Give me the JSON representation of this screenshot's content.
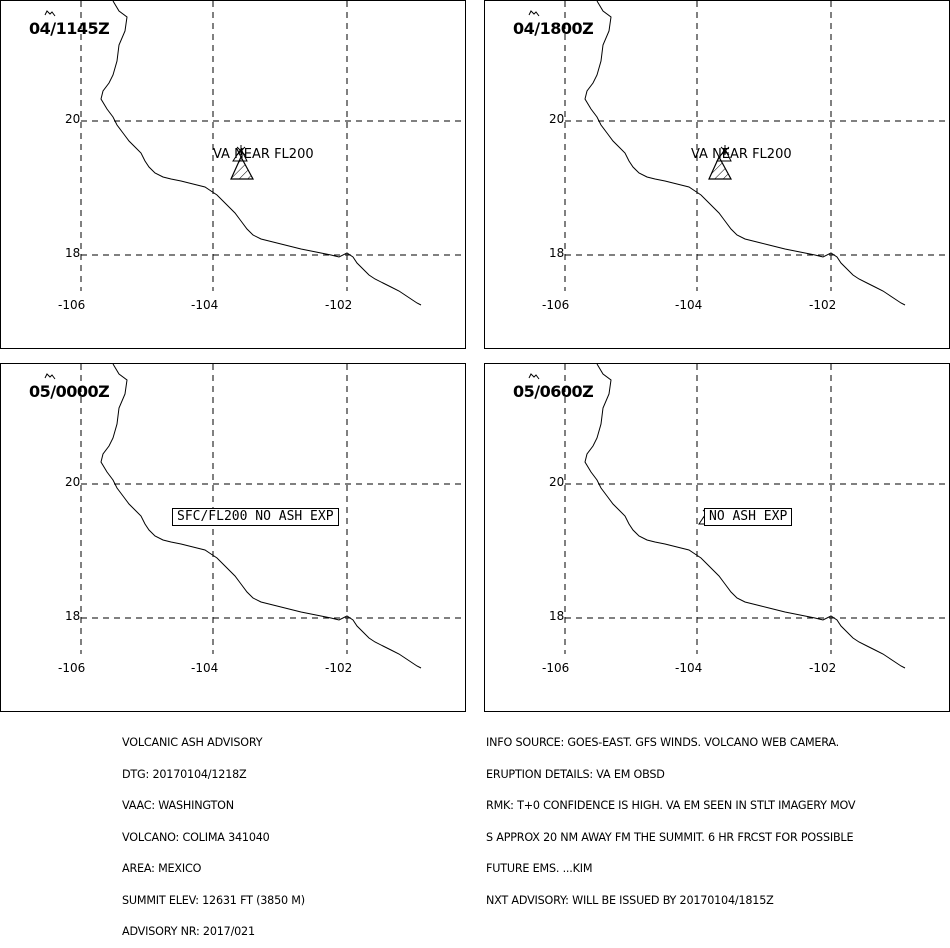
{
  "panels": [
    {
      "time": "04/1145Z",
      "lat_labels": [
        "20",
        "18"
      ],
      "lon_labels": [
        "-106",
        "-104",
        "-102"
      ],
      "annotation": {
        "kind": "cloud",
        "text": "VA NEAR FL200"
      }
    },
    {
      "time": "04/1800Z",
      "lat_labels": [
        "20",
        "18"
      ],
      "lon_labels": [
        "-106",
        "-104",
        "-102"
      ],
      "annotation": {
        "kind": "cloud",
        "text": "VA NEAR FL200"
      }
    },
    {
      "time": "05/0000Z",
      "lat_labels": [
        "20",
        "18"
      ],
      "lon_labels": [
        "-106",
        "-104",
        "-102"
      ],
      "annotation": {
        "kind": "box",
        "text": "SFC/FL200 NO ASH EXP"
      }
    },
    {
      "time": "05/0600Z",
      "lat_labels": [
        "20",
        "18"
      ],
      "lon_labels": [
        "-106",
        "-104",
        "-102"
      ],
      "annotation": {
        "kind": "box",
        "text": "NO ASH EXP"
      }
    }
  ],
  "advisory": {
    "lines": [
      "VOLCANIC ASH ADVISORY",
      "DTG: 20170104/1218Z",
      "VAAC: WASHINGTON",
      "VOLCANO: COLIMA 341040",
      "AREA: MEXICO",
      "SUMMIT ELEV: 12631 FT (3850 M)",
      "ADVISORY NR: 2017/021"
    ]
  },
  "info": {
    "lines": [
      "INFO SOURCE: GOES-EAST. GFS WINDS. VOLCANO WEB CAMERA.",
      "ERUPTION DETAILS: VA EM OBSD",
      "RMK: T+0 CONFIDENCE IS HIGH. VA EM SEEN IN STLT IMAGERY MOV",
      "S APPROX 20 NM AWAY FM THE SUMMIT. 6 HR FRCST FOR POSSIBLE",
      "FUTURE EMS. ...KIM",
      "NXT ADVISORY: WILL BE ISSUED BY 20170104/1815Z"
    ]
  }
}
